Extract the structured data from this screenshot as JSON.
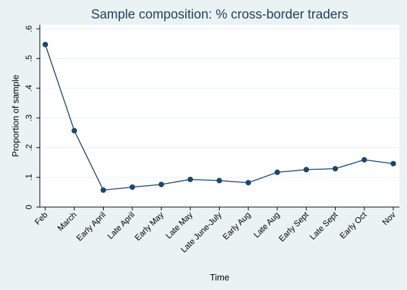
{
  "chart_data": {
    "type": "line",
    "title": "Sample composition: % cross-border traders",
    "xlabel": "Time",
    "ylabel": "Proportion of sample",
    "categories": [
      "Feb",
      "March",
      "Early April",
      "Late April",
      "Early May",
      "Late May",
      "Late June-July",
      "Early Aug",
      "Late Aug",
      "Early Sept",
      "Late Sept",
      "Early Oct",
      "Nov"
    ],
    "series": [
      {
        "values": [
          0.547,
          0.257,
          0.057,
          0.067,
          0.076,
          0.093,
          0.089,
          0.082,
          0.117,
          0.126,
          0.129,
          0.159,
          0.146
        ]
      }
    ],
    "ylim": [
      0,
      0.6
    ],
    "yticks": [
      0,
      0.1,
      0.2,
      0.3,
      0.4,
      0.5,
      0.6
    ],
    "ytick_labels": [
      "0",
      ".1",
      ".2",
      ".3",
      ".4",
      ".5",
      ".6"
    ],
    "grid": true,
    "colors": {
      "background": "#eaf2f3",
      "plot_area": "#ffffff",
      "line": "#1a476f",
      "title": "#1c3f5e"
    }
  }
}
